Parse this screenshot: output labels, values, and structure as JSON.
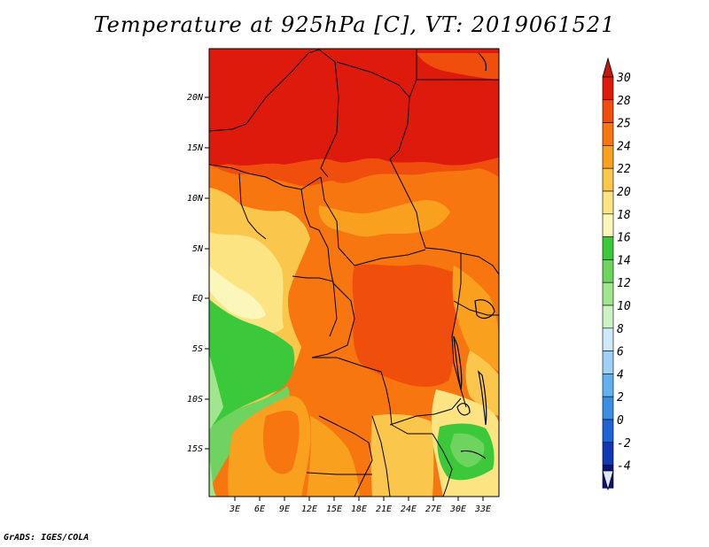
{
  "title": "Temperature at 925hPa [C], VT: 2019061521",
  "credit": "GrADS: IGES/COLA",
  "map": {
    "region": "Central Africa",
    "lon_range": [
      0,
      35
    ],
    "lat_range": [
      -19.5,
      24.5
    ],
    "lat_ticks": [
      "20N",
      "15N",
      "10N",
      "5N",
      "EQ",
      "5S",
      "10S",
      "15S"
    ],
    "lon_ticks": [
      "3E",
      "6E",
      "9E",
      "12E",
      "15E",
      "18E",
      "21E",
      "24E",
      "27E",
      "30E",
      "33E"
    ]
  },
  "colorbar": {
    "unit": "C",
    "levels": [
      "30",
      "28",
      "25",
      "24",
      "22",
      "20",
      "18",
      "16",
      "14",
      "12",
      "10",
      "8",
      "6",
      "4",
      "2",
      "0",
      "-2",
      "-4"
    ],
    "colors": [
      "#dd1a0b",
      "#f04e0d",
      "#f7760f",
      "#f9a01f",
      "#fac64b",
      "#fde483",
      "#fbf7bb",
      "#3bc83a",
      "#6ed35f",
      "#a1e58f",
      "#cdf0c4",
      "#cfe9fb",
      "#9fd1f6",
      "#62b0f0",
      "#3a8fe3",
      "#1f63d6",
      "#1137b7",
      "#0b137a"
    ],
    "top_cap_color": "#c5170a",
    "bottom_cap_color": "#e0e6fa"
  }
}
